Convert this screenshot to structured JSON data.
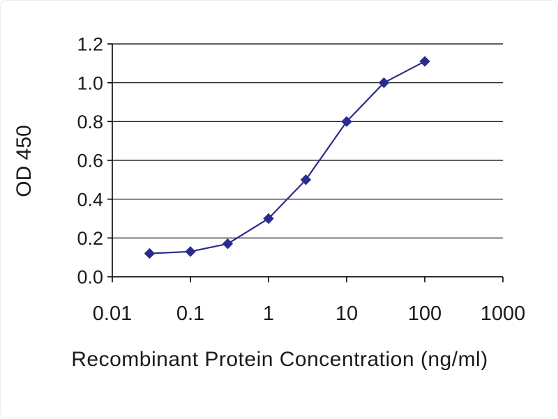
{
  "chart_data": {
    "type": "line",
    "title": "",
    "xlabel": "Recombinant Protein Concentration (ng/ml)",
    "ylabel": "OD 450",
    "xscale": "log",
    "xlim": [
      0.01,
      1000
    ],
    "ylim": [
      0,
      1.2
    ],
    "x": [
      0.03,
      0.1,
      0.3,
      1,
      3,
      10,
      30,
      100
    ],
    "y": [
      0.12,
      0.13,
      0.17,
      0.3,
      0.5,
      0.8,
      1.0,
      1.11
    ],
    "x_ticks": [
      0.01,
      0.1,
      1,
      10,
      100,
      1000
    ],
    "x_tick_labels": [
      "0.01",
      "0.1",
      "1",
      "10",
      "100",
      "1000"
    ],
    "y_ticks": [
      0,
      0.2,
      0.4,
      0.6,
      0.8,
      1.0,
      1.2
    ],
    "y_tick_labels": [
      "0.0",
      "0.2",
      "0.4",
      "0.6",
      "0.8",
      "1.0",
      "1.2"
    ],
    "grid": "horizontal",
    "legend": "none",
    "marker": "diamond",
    "line_color": "#2b2b8c",
    "grid_color": "#000000",
    "axis_color": "#000000",
    "text_color": "#1a1a1a",
    "background": "#ffffff"
  }
}
